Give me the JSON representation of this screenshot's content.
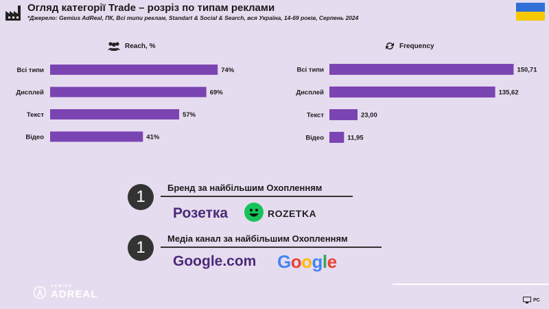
{
  "header": {
    "title": "Огляд категорії Trade – розріз по типам реклами",
    "source": "*Джерело: Gemius AdReal, ПК, Всі типи реклам, Standart & Social & Search, вся Україна, 14-69 років, Серпень 2024"
  },
  "flag": {
    "top_color": "#2f6fd6",
    "bottom_color": "#f5c800"
  },
  "accent_color": "#7b44b3",
  "chart_data": [
    {
      "type": "bar",
      "title": "Reach, %",
      "icon": "audience-icon",
      "categories": [
        "Всі типи",
        "Дисплей",
        "Текст",
        "Відео"
      ],
      "values": [
        74,
        69,
        57,
        41
      ],
      "labels": [
        "74%",
        "69%",
        "57%",
        "41%"
      ],
      "xlim": [
        0,
        100
      ]
    },
    {
      "type": "bar",
      "title": "Frequency",
      "icon": "refresh-icon",
      "categories": [
        "Всі типи",
        "Дисплей",
        "Текст",
        "Відео"
      ],
      "values": [
        150.71,
        135.62,
        23.0,
        11.95
      ],
      "labels": [
        "150,71",
        "135,62",
        "23,00",
        "11,95"
      ],
      "xlim": [
        0,
        160
      ]
    }
  ],
  "highlights": [
    {
      "rank": "1",
      "label": "Бренд за найбільшим Охопленням",
      "value": "Розетка",
      "logo": "ROZETKA"
    },
    {
      "rank": "1",
      "label": "Медіа канал за найбільшим Охопленням",
      "value": "Google.com",
      "logo": "Google"
    }
  ],
  "footer": {
    "brand": "ADREAL",
    "brand_small": "GEMIUS",
    "platform": "PC"
  }
}
